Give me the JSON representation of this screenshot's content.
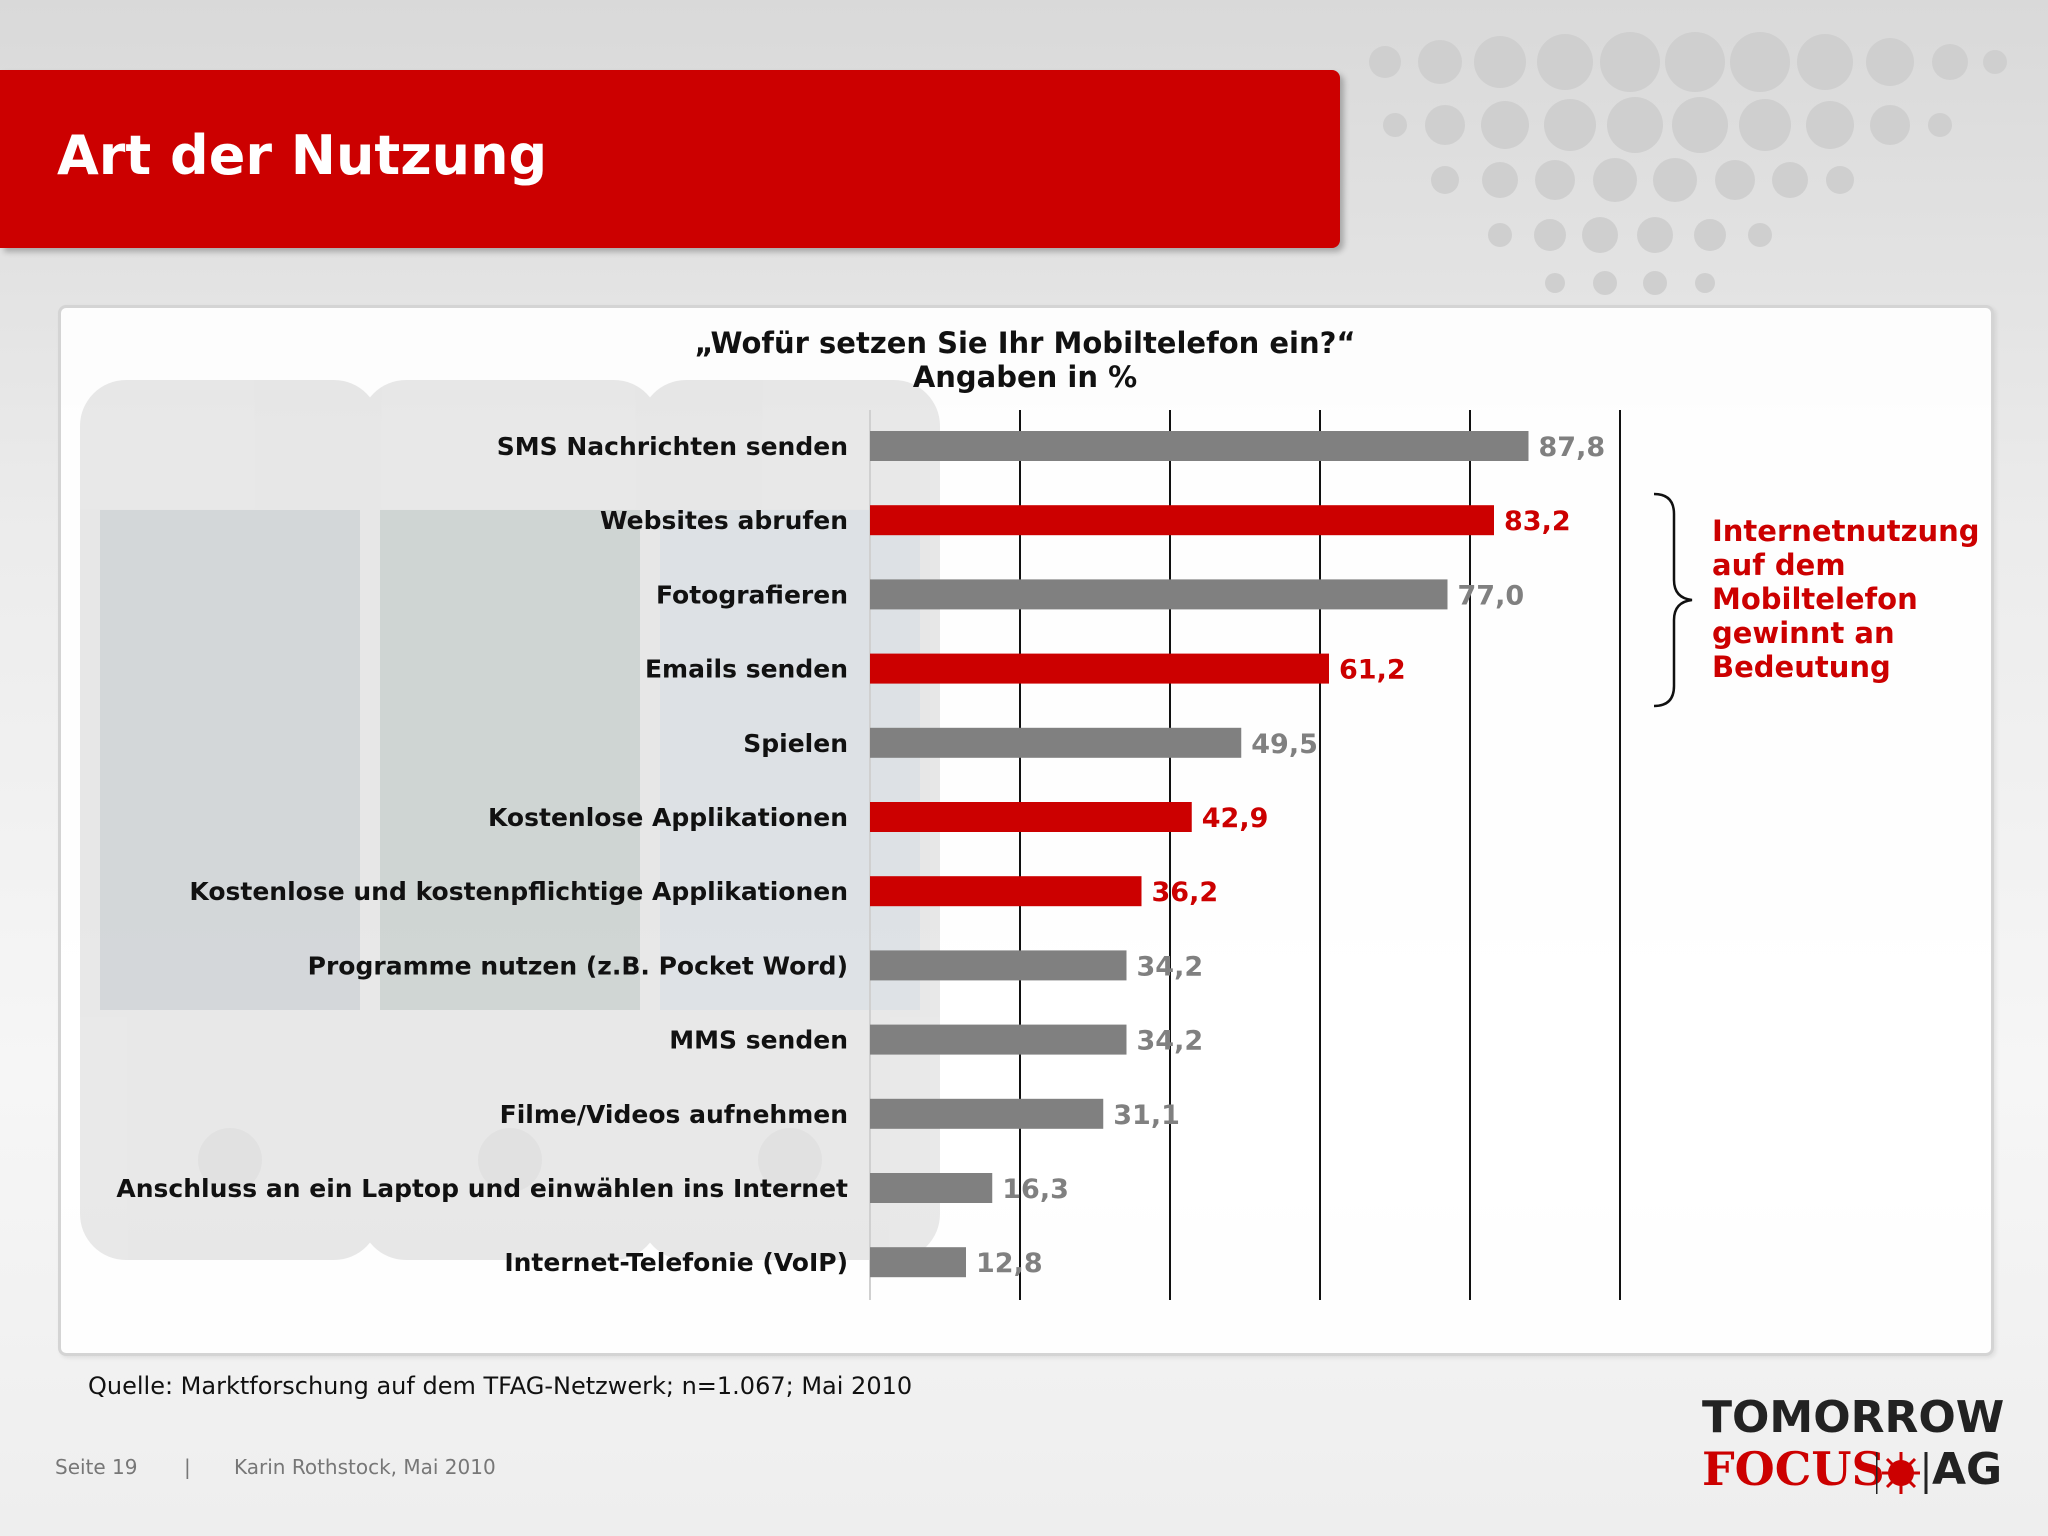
{
  "header": {
    "title": "Art der Nutzung"
  },
  "chart_data": {
    "type": "bar",
    "orientation": "horizontal",
    "title": "„Wofür setzen Sie Ihr Mobiltelefon ein?“",
    "subtitle": "Angaben in %",
    "xlim": [
      0,
      100
    ],
    "grid": true,
    "categories": [
      "SMS Nachrichten senden",
      "Websites abrufen",
      "Fotografieren",
      "Emails senden",
      "Spielen",
      "Kostenlose Applikationen",
      "Kostenlose und kostenpflichtige Applikationen",
      "Programme nutzen (z.B. Pocket Word)",
      "MMS senden",
      "Filme/Videos aufnehmen",
      "Anschluss an ein Laptop und einwählen ins Internet",
      "Internet-Telefonie (VoIP)"
    ],
    "values": [
      87.8,
      83.2,
      77.0,
      61.2,
      49.5,
      42.9,
      36.2,
      34.2,
      34.2,
      31.1,
      16.3,
      12.8
    ],
    "value_labels": [
      "87,8",
      "83,2",
      "77,0",
      "61,2",
      "49,5",
      "42,9",
      "36,2",
      "34,2",
      "34,2",
      "31,1",
      "16,3",
      "12,8"
    ],
    "highlight": [
      false,
      true,
      false,
      true,
      false,
      true,
      true,
      false,
      false,
      false,
      false,
      false
    ],
    "colors": {
      "default": "#808080",
      "highlight": "#cc0000"
    },
    "annotation": "Internetnutzung auf dem Mobiltelefon gewinnt an Bedeutung"
  },
  "source": "Quelle: Marktforschung auf dem TFAG-Netzwerk; n=1.067; Mai 2010",
  "footer": {
    "page": "Seite 19",
    "separator": "|",
    "author_date": "Karin Rothstock, Mai 2010"
  },
  "logo": {
    "line1": "TOMORROW",
    "focus": "FOCUS",
    "ag": "AG"
  }
}
